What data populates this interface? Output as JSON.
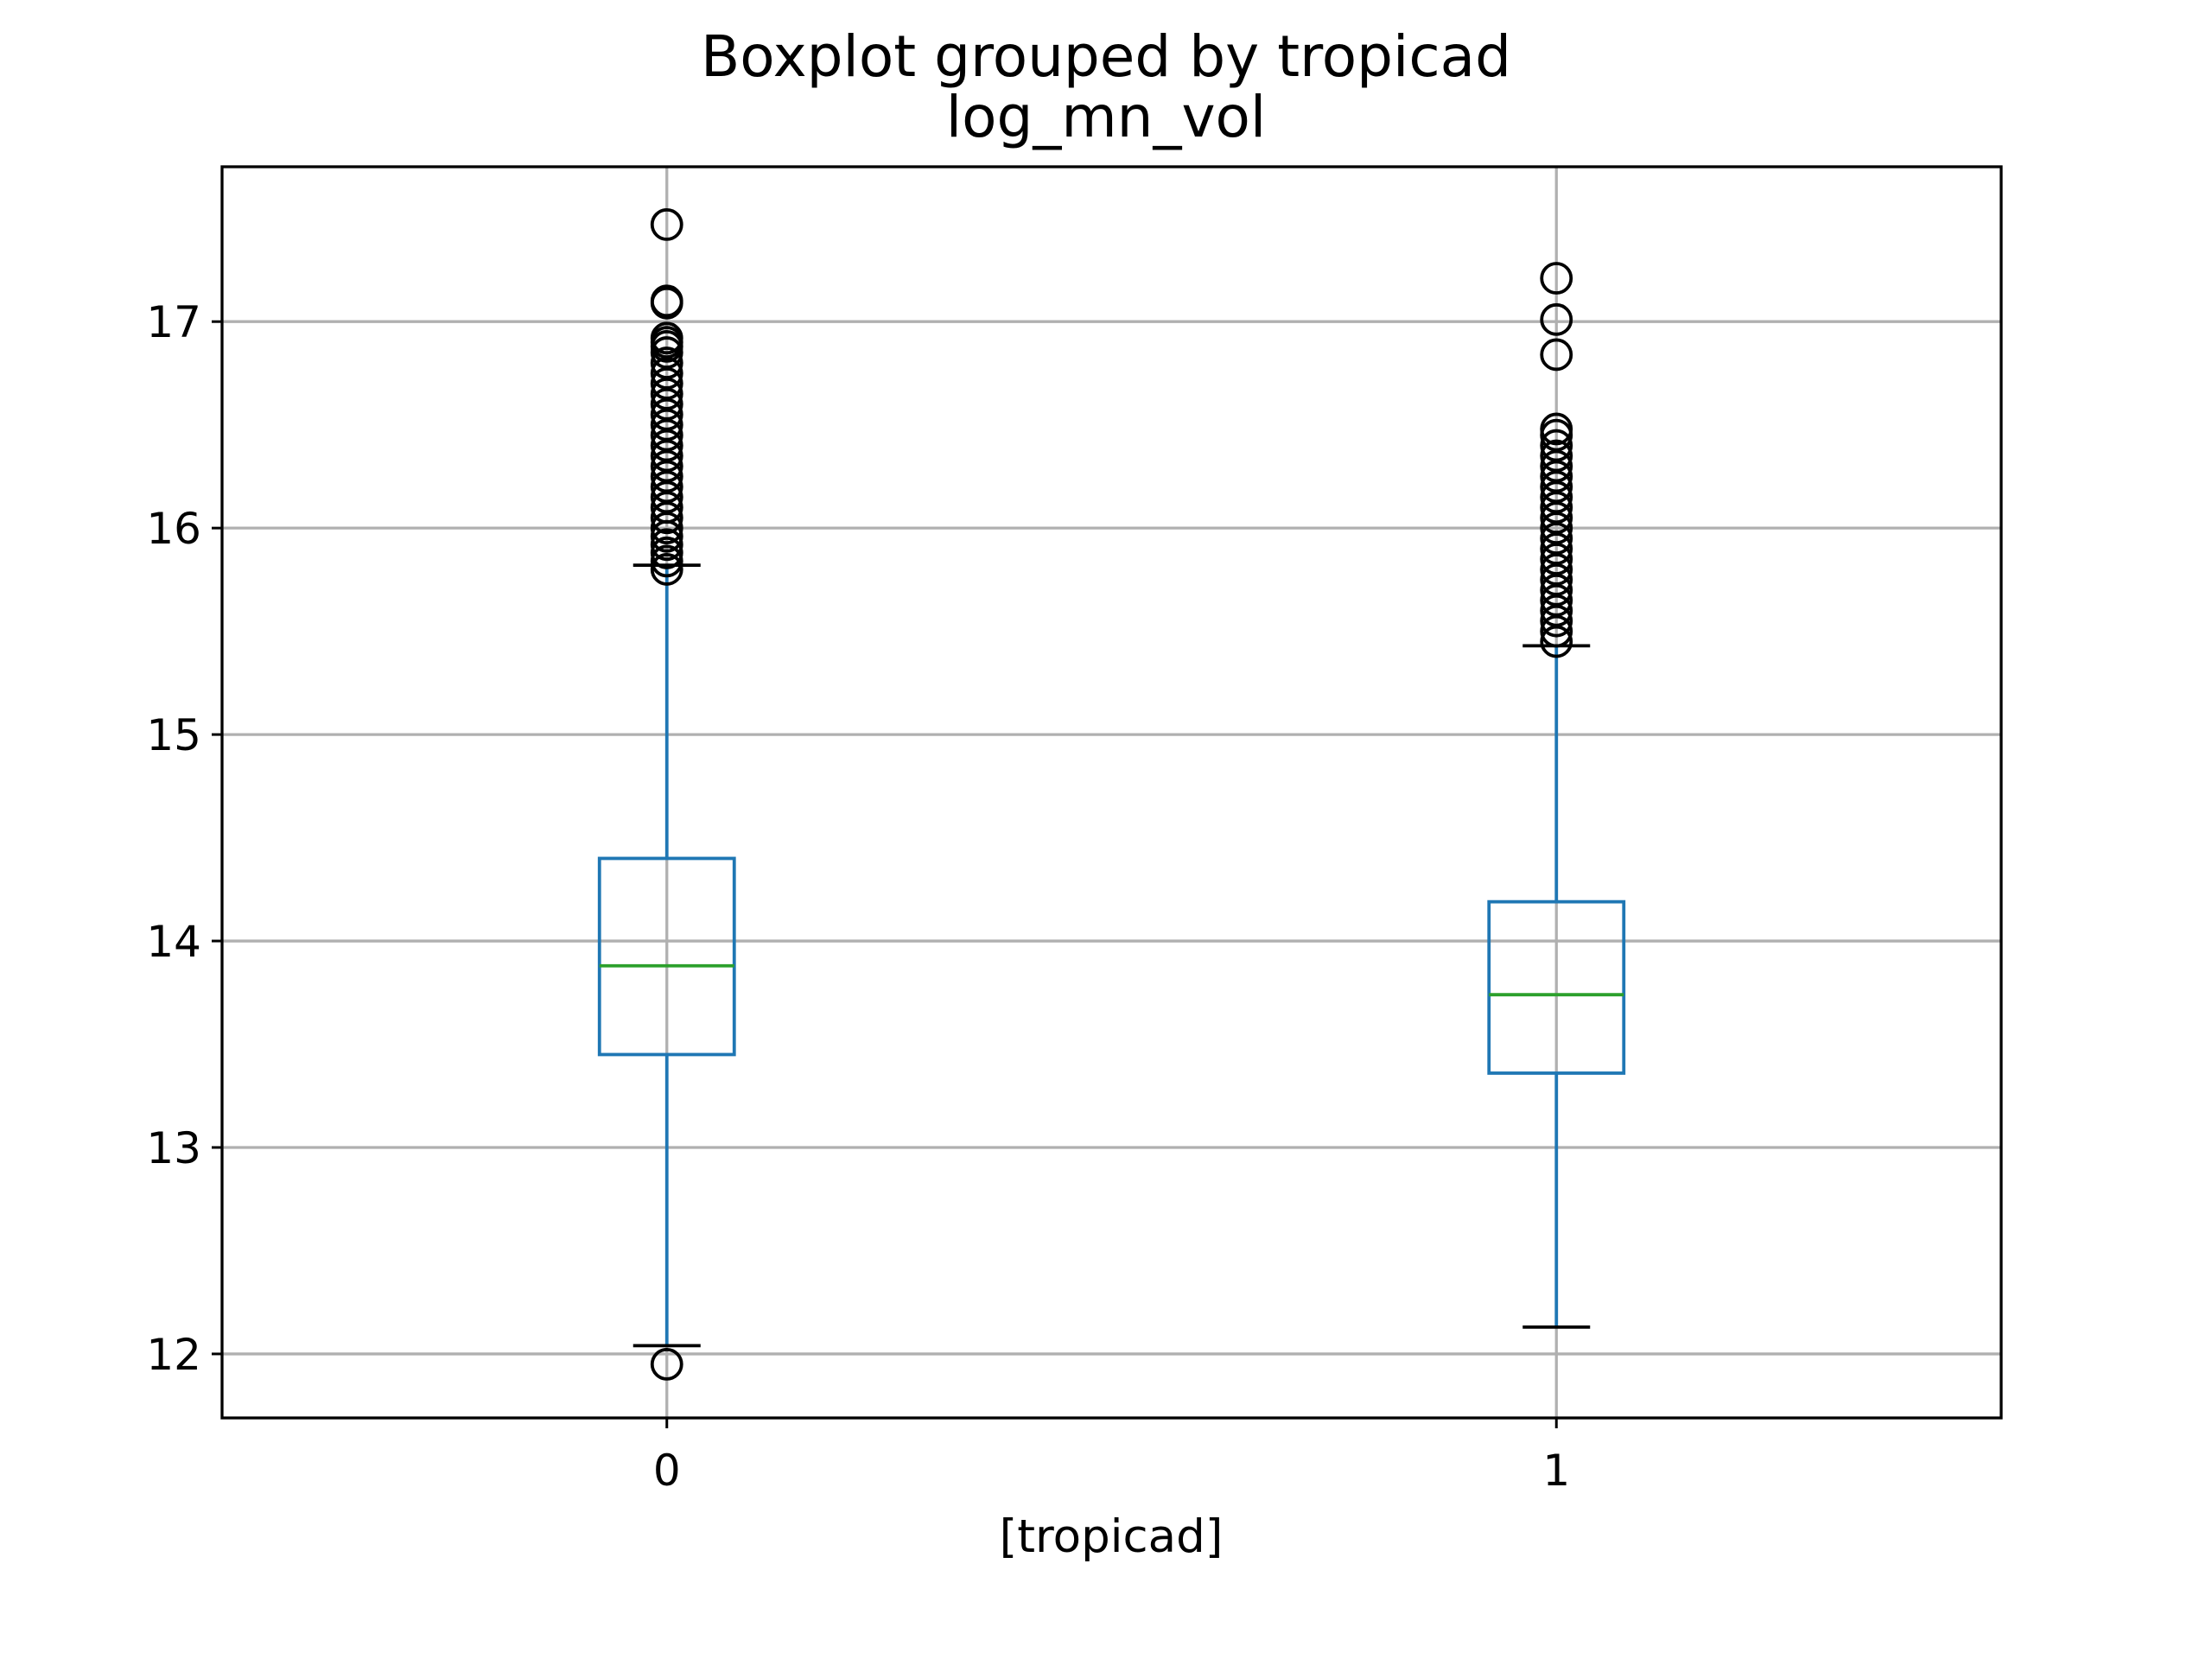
{
  "chart_data": {
    "type": "box",
    "title": "Boxplot grouped by tropicad",
    "subtitle": "log_mn_vol",
    "xlabel": "[tropicad]",
    "ylabel": "",
    "categories": [
      "0",
      "1"
    ],
    "ylim": [
      11.69,
      17.75
    ],
    "yticks": [
      12,
      13,
      14,
      15,
      16,
      17
    ],
    "grid": true,
    "colors": {
      "box": "#1f77b4",
      "median": "#2ca02c",
      "flier": "#000000"
    },
    "boxes": [
      {
        "category": "0",
        "whisker_low": 12.04,
        "q1": 13.45,
        "median": 13.88,
        "q3": 14.4,
        "whisker_high": 15.82,
        "fliers": [
          11.95,
          15.8,
          15.84,
          15.88,
          15.92,
          15.96,
          16.0,
          16.05,
          16.1,
          16.15,
          16.2,
          16.25,
          16.3,
          16.35,
          16.4,
          16.45,
          16.5,
          16.55,
          16.6,
          16.65,
          16.7,
          16.75,
          16.8,
          16.85,
          16.88,
          16.9,
          16.92,
          17.09,
          17.1,
          17.47
        ]
      },
      {
        "category": "1",
        "whisker_low": 12.13,
        "q1": 13.36,
        "median": 13.74,
        "q3": 14.19,
        "whisker_high": 15.43,
        "fliers": [
          15.45,
          15.5,
          15.55,
          15.6,
          15.65,
          15.7,
          15.75,
          15.8,
          15.85,
          15.9,
          15.95,
          16.0,
          16.05,
          16.1,
          16.15,
          16.2,
          16.25,
          16.3,
          16.35,
          16.4,
          16.45,
          16.48,
          16.84,
          17.01,
          17.21
        ]
      }
    ]
  }
}
